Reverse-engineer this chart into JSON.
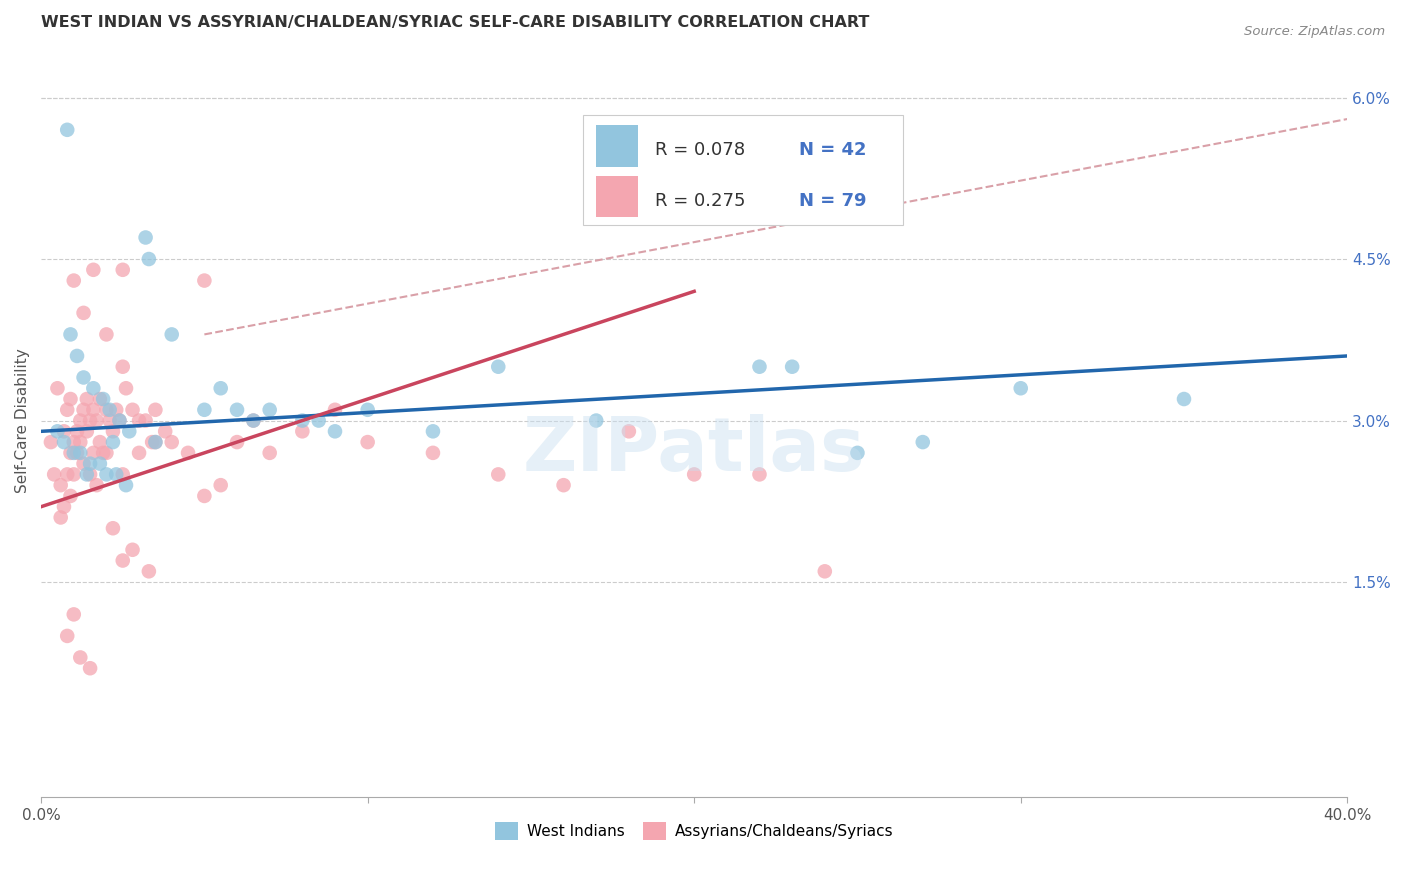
{
  "title": "WEST INDIAN VS ASSYRIAN/CHALDEAN/SYRIAC SELF-CARE DISABILITY CORRELATION CHART",
  "source": "Source: ZipAtlas.com",
  "ylabel": "Self-Care Disability",
  "right_yticks": [
    "6.0%",
    "4.5%",
    "3.0%",
    "1.5%"
  ],
  "right_ytick_vals": [
    0.06,
    0.045,
    0.03,
    0.015
  ],
  "legend_bottom1": "West Indians",
  "legend_bottom2": "Assyrians/Chaldeans/Syriacs",
  "color_blue": "#92c5de",
  "color_pink": "#f4a6b0",
  "color_blue_line": "#2166ac",
  "color_pink_line": "#c9455e",
  "color_dashed": "#d9a0a8",
  "watermark": "ZIPatlas",
  "xlim": [
    0.0,
    0.4
  ],
  "ylim": [
    -0.005,
    0.065
  ],
  "ytick_vals": [
    0.0,
    0.015,
    0.03,
    0.045,
    0.06
  ],
  "blue_R": "0.078",
  "blue_N": "42",
  "pink_R": "0.275",
  "pink_N": "79",
  "blue_scatter_x": [
    0.008,
    0.032,
    0.033,
    0.009,
    0.011,
    0.013,
    0.016,
    0.019,
    0.021,
    0.024,
    0.027,
    0.005,
    0.007,
    0.01,
    0.012,
    0.015,
    0.018,
    0.02,
    0.023,
    0.026,
    0.04,
    0.06,
    0.07,
    0.08,
    0.09,
    0.14,
    0.17,
    0.23,
    0.25,
    0.27,
    0.3,
    0.014,
    0.022,
    0.035,
    0.05,
    0.055,
    0.065,
    0.085,
    0.1,
    0.12,
    0.35,
    0.22
  ],
  "blue_scatter_y": [
    0.057,
    0.047,
    0.045,
    0.038,
    0.036,
    0.034,
    0.033,
    0.032,
    0.031,
    0.03,
    0.029,
    0.029,
    0.028,
    0.027,
    0.027,
    0.026,
    0.026,
    0.025,
    0.025,
    0.024,
    0.038,
    0.031,
    0.031,
    0.03,
    0.029,
    0.035,
    0.03,
    0.035,
    0.027,
    0.028,
    0.033,
    0.025,
    0.028,
    0.028,
    0.031,
    0.033,
    0.03,
    0.03,
    0.031,
    0.029,
    0.032,
    0.035
  ],
  "pink_scatter_x": [
    0.003,
    0.004,
    0.005,
    0.006,
    0.006,
    0.007,
    0.007,
    0.008,
    0.008,
    0.009,
    0.009,
    0.009,
    0.01,
    0.01,
    0.011,
    0.011,
    0.012,
    0.012,
    0.013,
    0.013,
    0.014,
    0.014,
    0.015,
    0.015,
    0.016,
    0.016,
    0.017,
    0.017,
    0.018,
    0.018,
    0.019,
    0.02,
    0.02,
    0.021,
    0.022,
    0.023,
    0.024,
    0.025,
    0.025,
    0.026,
    0.028,
    0.03,
    0.032,
    0.034,
    0.035,
    0.038,
    0.04,
    0.045,
    0.05,
    0.055,
    0.06,
    0.065,
    0.07,
    0.08,
    0.09,
    0.1,
    0.12,
    0.14,
    0.16,
    0.01,
    0.013,
    0.016,
    0.02,
    0.025,
    0.03,
    0.035,
    0.05,
    0.008,
    0.01,
    0.012,
    0.015,
    0.022,
    0.025,
    0.028,
    0.033,
    0.18,
    0.2,
    0.22,
    0.24
  ],
  "pink_scatter_y": [
    0.028,
    0.025,
    0.033,
    0.024,
    0.021,
    0.022,
    0.029,
    0.025,
    0.031,
    0.023,
    0.027,
    0.032,
    0.028,
    0.025,
    0.029,
    0.027,
    0.03,
    0.028,
    0.031,
    0.026,
    0.029,
    0.032,
    0.03,
    0.025,
    0.031,
    0.027,
    0.03,
    0.024,
    0.032,
    0.028,
    0.027,
    0.031,
    0.027,
    0.03,
    0.029,
    0.031,
    0.03,
    0.035,
    0.025,
    0.033,
    0.031,
    0.03,
    0.03,
    0.028,
    0.031,
    0.029,
    0.028,
    0.027,
    0.023,
    0.024,
    0.028,
    0.03,
    0.027,
    0.029,
    0.031,
    0.028,
    0.027,
    0.025,
    0.024,
    0.043,
    0.04,
    0.044,
    0.038,
    0.044,
    0.027,
    0.028,
    0.043,
    0.01,
    0.012,
    0.008,
    0.007,
    0.02,
    0.017,
    0.018,
    0.016,
    0.029,
    0.025,
    0.025,
    0.016
  ],
  "blue_line_x": [
    0.0,
    0.4
  ],
  "blue_line_y": [
    0.029,
    0.036
  ],
  "pink_line_x": [
    0.0,
    0.2
  ],
  "pink_line_y": [
    0.022,
    0.042
  ],
  "dashed_line_x": [
    0.05,
    0.4
  ],
  "dashed_line_y": [
    0.038,
    0.058
  ]
}
